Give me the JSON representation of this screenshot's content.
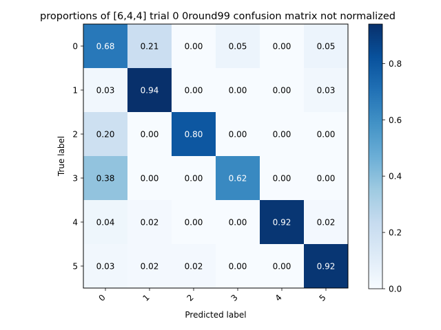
{
  "chart_data": {
    "type": "heatmap",
    "title": "proportions of [6,4,4] trial 0 0round99 confusion matrix not normalized",
    "xlabel": "Predicted label",
    "ylabel": "True label",
    "x_ticks": [
      "0",
      "1",
      "2",
      "3",
      "4",
      "5"
    ],
    "y_ticks": [
      "0",
      "1",
      "2",
      "3",
      "4",
      "5"
    ],
    "matrix": [
      [
        0.68,
        0.21,
        0.0,
        0.05,
        0.0,
        0.05
      ],
      [
        0.03,
        0.94,
        0.0,
        0.0,
        0.0,
        0.03
      ],
      [
        0.2,
        0.0,
        0.8,
        0.0,
        0.0,
        0.0
      ],
      [
        0.38,
        0.0,
        0.0,
        0.62,
        0.0,
        0.0
      ],
      [
        0.04,
        0.02,
        0.0,
        0.0,
        0.92,
        0.02
      ],
      [
        0.03,
        0.02,
        0.02,
        0.0,
        0.0,
        0.92
      ]
    ],
    "cell_labels": [
      [
        "0.68",
        "0.21",
        "0.00",
        "0.05",
        "0.00",
        "0.05"
      ],
      [
        "0.03",
        "0.94",
        "0.00",
        "0.00",
        "0.00",
        "0.03"
      ],
      [
        "0.20",
        "0.00",
        "0.80",
        "0.00",
        "0.00",
        "0.00"
      ],
      [
        "0.38",
        "0.00",
        "0.00",
        "0.62",
        "0.00",
        "0.00"
      ],
      [
        "0.04",
        "0.02",
        "0.00",
        "0.00",
        "0.92",
        "0.02"
      ],
      [
        "0.03",
        "0.02",
        "0.02",
        "0.00",
        "0.00",
        "0.92"
      ]
    ],
    "colormap": "Blues",
    "colorbar": {
      "range": [
        0.0,
        0.94
      ],
      "ticks": [
        "0.0",
        "0.2",
        "0.4",
        "0.6",
        "0.8"
      ]
    },
    "x_tick_rotation": "45 degrees",
    "grid": false
  }
}
